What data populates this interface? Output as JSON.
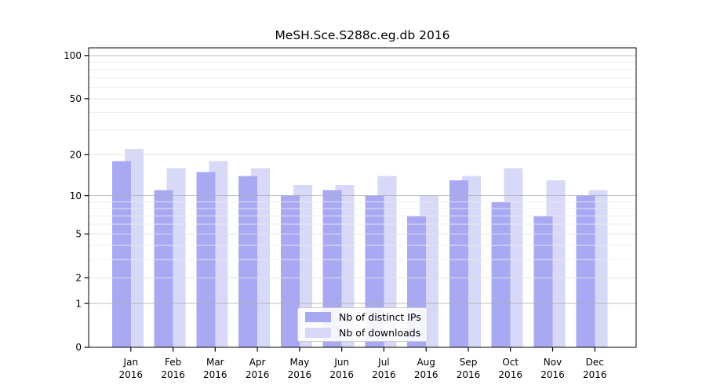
{
  "title": "MeSH.Sce.S288c.eg.db 2016",
  "chart_data": {
    "type": "bar",
    "title": "MeSH.Sce.S288c.eg.db 2016",
    "categories": [
      "Jan",
      "Feb",
      "Mar",
      "Apr",
      "May",
      "Jun",
      "Jul",
      "Aug",
      "Sep",
      "Oct",
      "Nov",
      "Dec"
    ],
    "category_year": "2016",
    "series": [
      {
        "name": "Nb of distinct IPs",
        "color": "#a9a9f3",
        "values": [
          18,
          11,
          15,
          14,
          10,
          11,
          10,
          7,
          13,
          9,
          7,
          10
        ]
      },
      {
        "name": "Nb of downloads",
        "color": "#d8d8f8",
        "values": [
          22,
          16,
          18,
          16,
          12,
          12,
          14,
          10,
          14,
          16,
          13,
          11
        ]
      }
    ],
    "y_axis": {
      "scale": "log1p",
      "tick_labels": [
        "0",
        "1",
        "2",
        "5",
        "10",
        "20",
        "50",
        "100"
      ],
      "tick_values": [
        0,
        1,
        2,
        5,
        10,
        20,
        50,
        100
      ],
      "major_grid_values": [
        1,
        10,
        100
      ],
      "labeled_minor_grid_values": [
        2,
        5,
        20,
        50
      ],
      "minor_grid_values": [
        3,
        4,
        6,
        7,
        8,
        9,
        30,
        40,
        60,
        70,
        80,
        90
      ],
      "vmax": 113
    },
    "legend": {
      "position": "bottom-center",
      "items": [
        "Nb of distinct IPs",
        "Nb of downloads"
      ]
    },
    "grid": true,
    "colors": {
      "major_grid": "#ababab",
      "labeled_minor_grid": "#e2e2e2",
      "minor_grid": "#ededed",
      "axis": "#000000"
    }
  }
}
